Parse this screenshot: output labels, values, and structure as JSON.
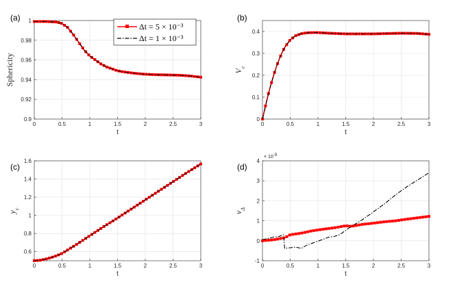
{
  "figure": {
    "legend": {
      "entries": [
        {
          "label": "Δt = 5 × 10⁻³",
          "color": "#ff0000",
          "style": "solid-square-markers"
        },
        {
          "label": "Δt = 1 × 10⁻³",
          "color": "#000000",
          "style": "dash-dot"
        }
      ],
      "placement": "top-right of panel (a)"
    }
  },
  "chart_data": [
    {
      "panel_label": "(a)",
      "type": "line",
      "xlabel": "t",
      "ylabel": "Sphericity",
      "xlim": [
        0,
        3
      ],
      "ylim": [
        0.9,
        1.0
      ],
      "xticks": [
        0,
        0.5,
        1,
        1.5,
        2,
        2.5,
        3
      ],
      "yticks": [
        0.9,
        0.92,
        0.94,
        0.96,
        0.98,
        1
      ],
      "ytick_labels": [
        "0.9",
        "0.92",
        "0.94",
        "0.96",
        "0.98",
        "1"
      ],
      "grid": true,
      "series": [
        {
          "name": "Δt = 5 × 10⁻³",
          "color": "#ff0000",
          "x": [
            0,
            0.2,
            0.4,
            0.5,
            0.6,
            0.7,
            0.8,
            0.9,
            1.0,
            1.1,
            1.2,
            1.3,
            1.4,
            1.5,
            1.6,
            1.8,
            2.0,
            2.2,
            2.4,
            2.6,
            2.8,
            3.0
          ],
          "y": [
            0.999,
            0.999,
            0.9985,
            0.997,
            0.993,
            0.986,
            0.978,
            0.97,
            0.964,
            0.96,
            0.956,
            0.953,
            0.951,
            0.949,
            0.948,
            0.9465,
            0.9455,
            0.945,
            0.9448,
            0.9445,
            0.9438,
            0.9425
          ]
        },
        {
          "name": "Δt = 1 × 10⁻³",
          "color": "#000000",
          "x": [
            0,
            0.2,
            0.4,
            0.5,
            0.6,
            0.7,
            0.8,
            0.9,
            1.0,
            1.1,
            1.2,
            1.3,
            1.4,
            1.5,
            1.6,
            1.8,
            2.0,
            2.2,
            2.4,
            2.6,
            2.8,
            3.0
          ],
          "y": [
            0.999,
            0.999,
            0.9985,
            0.997,
            0.993,
            0.986,
            0.978,
            0.97,
            0.964,
            0.96,
            0.956,
            0.953,
            0.951,
            0.949,
            0.948,
            0.9465,
            0.9455,
            0.945,
            0.9448,
            0.9445,
            0.9438,
            0.9425
          ]
        }
      ]
    },
    {
      "panel_label": "(b)",
      "type": "line",
      "xlabel": "t",
      "ylabel": "V_c",
      "xlim": [
        0,
        3
      ],
      "ylim": [
        0,
        0.45
      ],
      "xticks": [
        0,
        0.5,
        1,
        1.5,
        2,
        2.5,
        3
      ],
      "yticks": [
        0,
        0.1,
        0.2,
        0.3,
        0.4
      ],
      "ytick_labels": [
        "0",
        "0.1",
        "0.2",
        "0.3",
        "0.4"
      ],
      "grid": true,
      "series": [
        {
          "name": "Δt = 5 × 10⁻³",
          "color": "#ff0000",
          "x": [
            0,
            0.05,
            0.1,
            0.15,
            0.2,
            0.25,
            0.3,
            0.35,
            0.4,
            0.5,
            0.6,
            0.7,
            0.8,
            0.9,
            1.0,
            1.2,
            1.5,
            2.0,
            2.5,
            2.8,
            3.0
          ],
          "y": [
            0,
            0.055,
            0.108,
            0.155,
            0.198,
            0.238,
            0.272,
            0.302,
            0.327,
            0.362,
            0.381,
            0.39,
            0.394,
            0.395,
            0.395,
            0.392,
            0.389,
            0.389,
            0.392,
            0.391,
            0.387
          ]
        },
        {
          "name": "Δt = 1 × 10⁻³",
          "color": "#000000",
          "x": [
            0,
            0.05,
            0.1,
            0.15,
            0.2,
            0.25,
            0.3,
            0.35,
            0.4,
            0.5,
            0.6,
            0.7,
            0.8,
            0.9,
            1.0,
            1.2,
            1.5,
            2.0,
            2.5,
            2.8,
            3.0
          ],
          "y": [
            0,
            0.055,
            0.108,
            0.155,
            0.198,
            0.238,
            0.272,
            0.302,
            0.327,
            0.362,
            0.381,
            0.39,
            0.394,
            0.395,
            0.395,
            0.392,
            0.389,
            0.389,
            0.392,
            0.391,
            0.387
          ]
        }
      ]
    },
    {
      "panel_label": "(c)",
      "type": "line",
      "xlabel": "t",
      "ylabel": "y_c",
      "xlim": [
        0,
        3
      ],
      "ylim": [
        0.5,
        1.6
      ],
      "xticks": [
        0,
        0.5,
        1,
        1.5,
        2,
        2.5,
        3
      ],
      "yticks": [
        0.6,
        0.8,
        1,
        1.2,
        1.4,
        1.6
      ],
      "ytick_labels": [
        "0.6",
        "0.8",
        "1",
        "1.2",
        "1.4",
        "1.6"
      ],
      "grid": true,
      "series": [
        {
          "name": "Δt = 5 × 10⁻³",
          "color": "#ff0000",
          "x": [
            0,
            0.1,
            0.2,
            0.3,
            0.4,
            0.5,
            0.75,
            1.0,
            1.25,
            1.5,
            1.75,
            2.0,
            2.25,
            2.5,
            2.75,
            3.0
          ],
          "y": [
            0.5,
            0.505,
            0.517,
            0.534,
            0.555,
            0.58,
            0.675,
            0.775,
            0.875,
            0.97,
            1.07,
            1.17,
            1.27,
            1.37,
            1.47,
            1.565
          ]
        },
        {
          "name": "Δt = 1 × 10⁻³",
          "color": "#000000",
          "x": [
            0,
            0.1,
            0.2,
            0.3,
            0.4,
            0.5,
            0.75,
            1.0,
            1.25,
            1.5,
            1.75,
            2.0,
            2.25,
            2.5,
            2.75,
            3.0
          ],
          "y": [
            0.5,
            0.505,
            0.517,
            0.534,
            0.555,
            0.58,
            0.675,
            0.775,
            0.875,
            0.97,
            1.07,
            1.17,
            1.27,
            1.37,
            1.47,
            1.565
          ]
        }
      ]
    },
    {
      "panel_label": "(d)",
      "type": "line",
      "xlabel": "t",
      "ylabel": "v_Δ",
      "axis_multiplier": "10^-9",
      "xlim": [
        0,
        3
      ],
      "ylim": [
        -1,
        4
      ],
      "xticks": [
        0,
        0.5,
        1,
        1.5,
        2,
        2.5,
        3
      ],
      "yticks": [
        -1,
        0,
        1,
        2,
        3,
        4
      ],
      "ytick_labels": [
        "-1",
        "0",
        "1",
        "2",
        "3",
        "4"
      ],
      "grid": true,
      "series": [
        {
          "name": "Δt = 5 × 10⁻³",
          "color": "#ff0000",
          "x": [
            0,
            0.2,
            0.4,
            0.5,
            0.7,
            0.9,
            1.1,
            1.3,
            1.5,
            1.6,
            1.8,
            2.0,
            2.2,
            2.4,
            2.6,
            2.8,
            3.0
          ],
          "y": [
            0,
            0.05,
            0.15,
            0.3,
            0.38,
            0.5,
            0.58,
            0.65,
            0.75,
            0.72,
            0.82,
            0.88,
            0.95,
            1.0,
            1.08,
            1.15,
            1.22
          ]
        },
        {
          "name": "Δt = 1 × 10⁻³",
          "color": "#000000",
          "x": [
            0,
            0.1,
            0.2,
            0.3,
            0.38,
            0.4,
            0.5,
            0.6,
            0.7,
            0.8,
            0.9,
            1.0,
            1.1,
            1.2,
            1.3,
            1.4,
            1.5,
            1.6,
            1.7,
            1.8,
            2.0,
            2.2,
            2.4,
            2.6,
            2.8,
            3.0
          ],
          "y": [
            0.05,
            0.12,
            0.18,
            0.22,
            0.3,
            -0.38,
            -0.35,
            -0.32,
            -0.38,
            -0.22,
            -0.12,
            -0.02,
            0.08,
            0.18,
            0.22,
            0.32,
            0.52,
            0.72,
            0.88,
            1.05,
            1.45,
            1.85,
            2.3,
            2.7,
            3.05,
            3.4
          ]
        }
      ]
    }
  ]
}
